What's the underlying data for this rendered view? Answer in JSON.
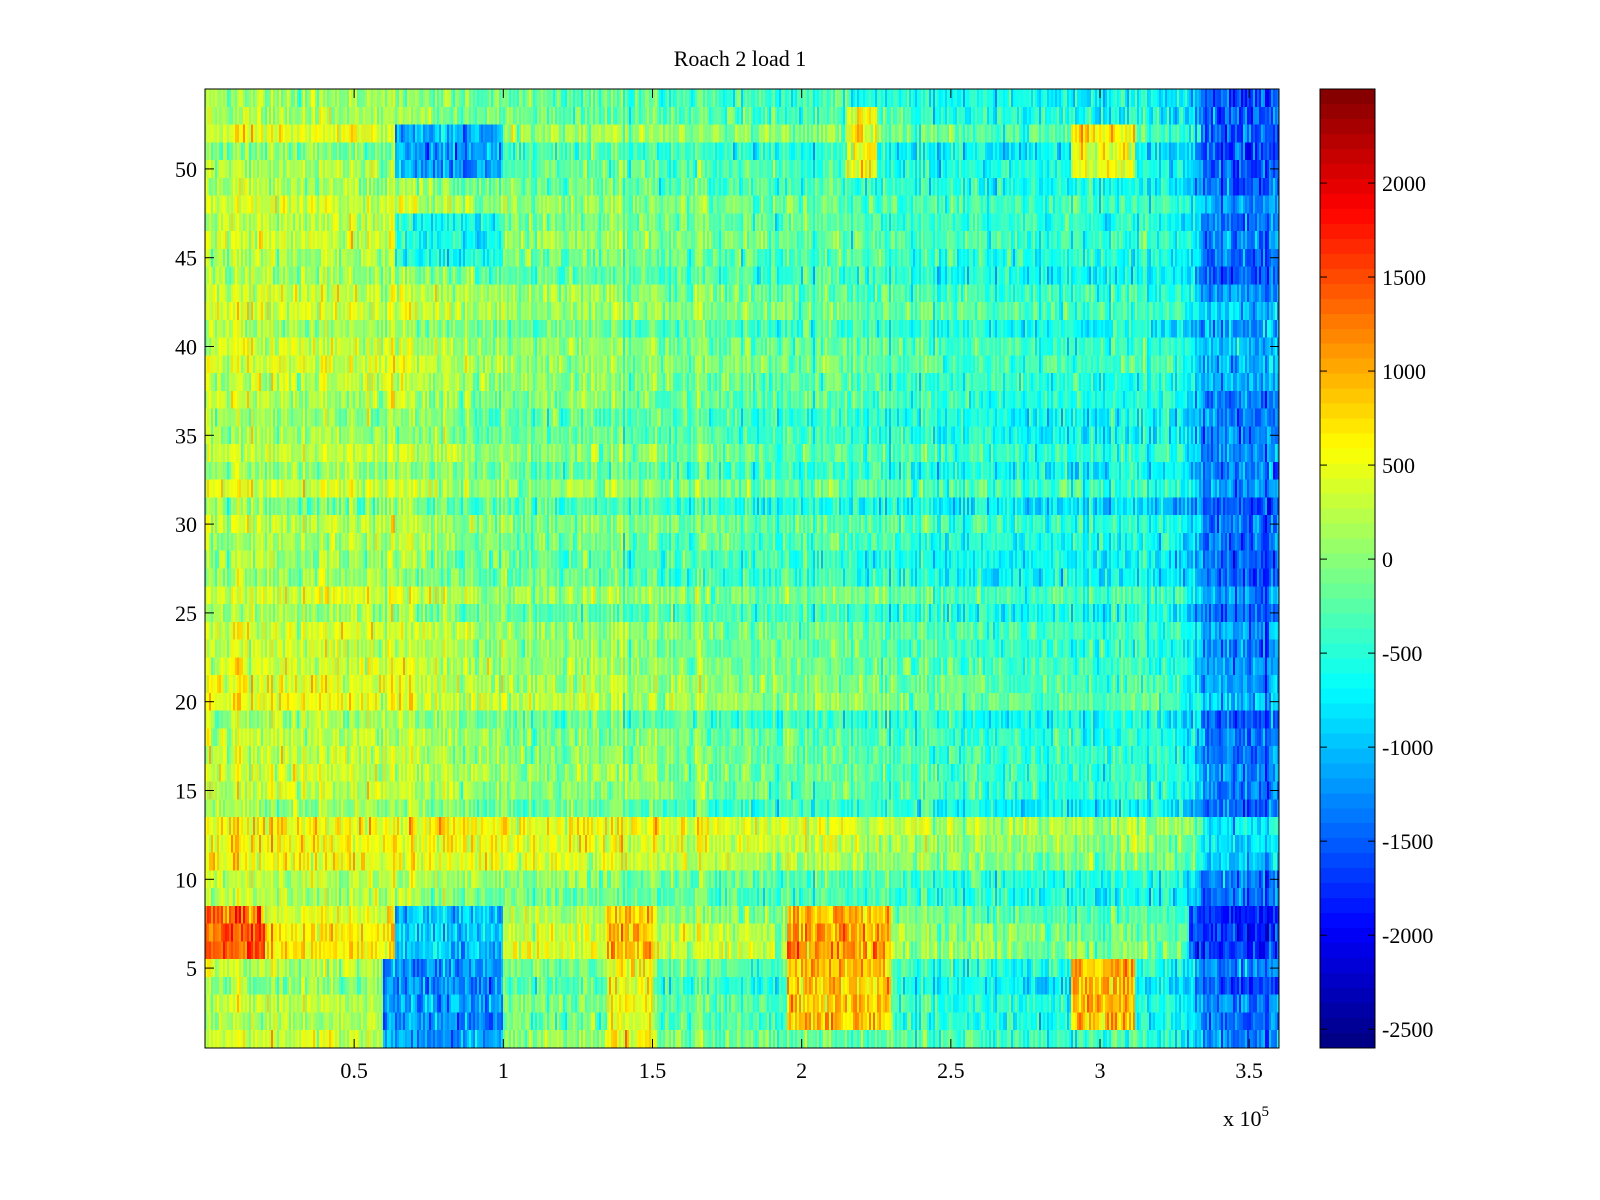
{
  "chart_data": {
    "type": "heatmap",
    "title": "Roach 2 load 1",
    "xlabel": "",
    "ylabel": "",
    "x_range": [
      0,
      360000
    ],
    "y_range": [
      0.5,
      54.5
    ],
    "x_ticks": [
      50000,
      100000,
      150000,
      200000,
      250000,
      300000,
      350000
    ],
    "x_tick_labels": [
      "0.5",
      "1",
      "1.5",
      "2",
      "2.5",
      "3",
      "3.5"
    ],
    "x_exponent_label": "x 10",
    "x_exponent_power": "5",
    "y_ticks": [
      5,
      10,
      15,
      20,
      25,
      30,
      35,
      40,
      45,
      50
    ],
    "y_tick_labels": [
      "5",
      "10",
      "15",
      "20",
      "25",
      "30",
      "35",
      "40",
      "45",
      "50"
    ],
    "rows": 54,
    "colormap": "jet",
    "color_range": [
      -2600,
      2500
    ],
    "colorbar_ticks": [
      2000,
      1500,
      1000,
      500,
      0,
      -500,
      -1000,
      -1500,
      -2000,
      -2500
    ],
    "colorbar_tick_labels": [
      "2000",
      "1500",
      "1000",
      "500",
      "0",
      "-500",
      "-1000",
      "-1500",
      "-2000",
      "-2500"
    ],
    "value_baseline": -150,
    "x_trend": {
      "x": [
        0,
        60000,
        100000,
        150000,
        200000,
        250000,
        300000,
        330000,
        335000,
        360000
      ],
      "values": [
        500,
        350,
        150,
        0,
        -100,
        -250,
        -400,
        -450,
        -1200,
        -1200
      ]
    },
    "row_offsets": [
      {
        "rows": [
          11,
          12,
          13
        ],
        "value": 500
      },
      {
        "rows": [
          6,
          7,
          8
        ],
        "value": 250
      },
      {
        "rows": [
          29,
          30,
          31
        ],
        "value": -150
      },
      {
        "rows": [
          33,
          34,
          35,
          36
        ],
        "value": -120
      },
      {
        "rows": [
          20,
          21,
          22,
          23
        ],
        "value": 100
      }
    ],
    "features": [
      {
        "x_range": [
          0,
          20000
        ],
        "rows": [
          6,
          7,
          8
        ],
        "value": 1800
      },
      {
        "x_range": [
          64000,
          100000
        ],
        "rows": [
          6,
          7,
          8
        ],
        "value": -1700
      },
      {
        "x_range": [
          60000,
          100000
        ],
        "rows": [
          1,
          2,
          3,
          4,
          5
        ],
        "value": -1900
      },
      {
        "x_range": [
          64000,
          100000
        ],
        "rows": [
          50,
          51,
          52
        ],
        "value": -1800
      },
      {
        "x_range": [
          64000,
          100000
        ],
        "rows": [
          45,
          46,
          47
        ],
        "value": -1000
      },
      {
        "x_range": [
          135000,
          150000
        ],
        "rows": [
          6,
          7,
          8
        ],
        "value": 1300
      },
      {
        "x_range": [
          135000,
          150000
        ],
        "rows": [
          1,
          2,
          3,
          4,
          5
        ],
        "value": 900
      },
      {
        "x_range": [
          195000,
          230000
        ],
        "rows": [
          2,
          3,
          4,
          5,
          6,
          7,
          8
        ],
        "value": 1500
      },
      {
        "x_range": [
          215000,
          225000
        ],
        "rows": [
          50,
          51,
          52,
          53
        ],
        "value": 1000
      },
      {
        "x_range": [
          290000,
          312000
        ],
        "rows": [
          2,
          3,
          4,
          5
        ],
        "value": 1800
      },
      {
        "x_range": [
          290000,
          312000
        ],
        "rows": [
          50,
          51,
          52
        ],
        "value": 1200
      },
      {
        "x_range": [
          330000,
          360000
        ],
        "rows": [
          6,
          7,
          8
        ],
        "value": -2200
      },
      {
        "x_range": [
          335000,
          360000
        ],
        "rows": [
          29,
          30,
          31
        ],
        "value": -1500
      },
      {
        "x_range": [
          335000,
          360000
        ],
        "rows": [
          33,
          34,
          35,
          36
        ],
        "value": -1200
      },
      {
        "x_range": [
          335000,
          360000
        ],
        "rows": [
          51,
          52,
          53,
          54
        ],
        "value": -1600
      },
      {
        "x_range": [
          335000,
          360000
        ],
        "rows": [
          38,
          39,
          40,
          41,
          42
        ],
        "value": -900
      },
      {
        "x_range": [
          0,
          140000
        ],
        "rows": [
          11,
          12,
          13
        ],
        "value": 500
      }
    ]
  },
  "colors": {
    "background": "#ffffff",
    "axis": "#000000"
  }
}
